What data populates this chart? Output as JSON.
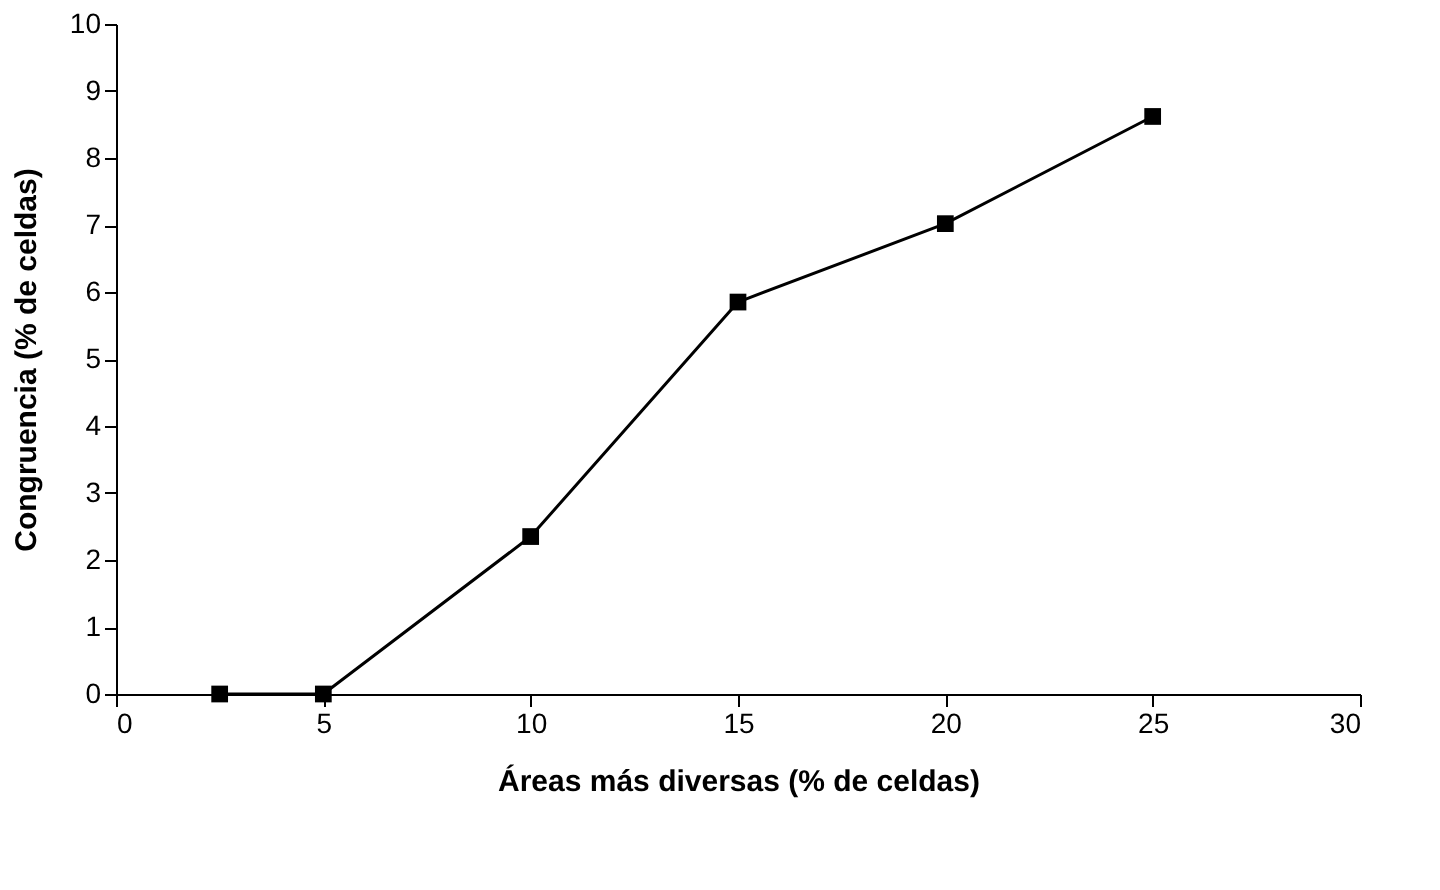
{
  "chart_data": {
    "type": "line",
    "xlabel": "Áreas más diversas (% de celdas)",
    "ylabel": "Congruencia (% de celdas)",
    "x": [
      2.5,
      5,
      10,
      15,
      20,
      25
    ],
    "series": [
      {
        "color": "#000000",
        "values": [
          0,
          0,
          2.35,
          5.85,
          7.02,
          8.62
        ]
      }
    ],
    "xlim": [
      0,
      30
    ],
    "xticks": [
      0,
      5,
      10,
      15,
      20,
      25,
      30
    ],
    "ylim": [
      0,
      10
    ],
    "yticks": [
      0,
      1,
      2,
      3,
      4,
      5,
      6,
      7,
      8,
      9,
      10
    ],
    "marker": "square",
    "line_style": "solid"
  }
}
